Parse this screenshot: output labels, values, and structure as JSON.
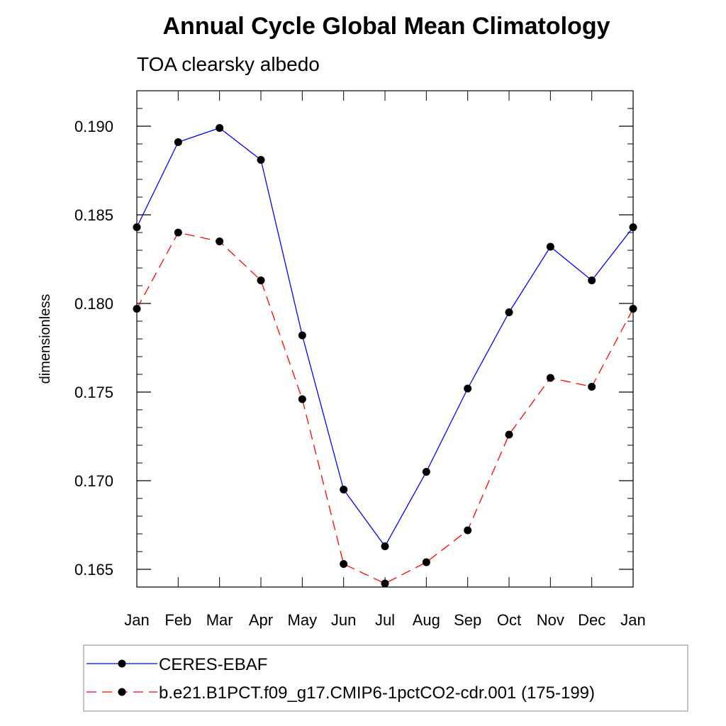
{
  "chart_data": {
    "type": "line",
    "title": "Annual Cycle Global Mean Climatology",
    "subtitle": "TOA clearsky albedo",
    "xlabel": "",
    "ylabel": "dimensionless",
    "categories": [
      "Jan",
      "Feb",
      "Mar",
      "Apr",
      "May",
      "Jun",
      "Jul",
      "Aug",
      "Sep",
      "Oct",
      "Nov",
      "Dec",
      "Jan"
    ],
    "ylim": [
      0.164,
      0.192
    ],
    "yticks": [
      0.165,
      0.17,
      0.175,
      0.18,
      0.185,
      0.19
    ],
    "ytick_labels": [
      "0.165",
      "0.170",
      "0.175",
      "0.180",
      "0.185",
      "0.190"
    ],
    "series": [
      {
        "name": "CERES-EBAF",
        "color": "#0000ff",
        "dash": "solid",
        "values": [
          0.1843,
          0.1891,
          0.1899,
          0.1881,
          0.1782,
          0.1695,
          0.1663,
          0.1705,
          0.1752,
          0.1795,
          0.1832,
          0.1813,
          0.1843
        ]
      },
      {
        "name": "b.e21.B1PCT.f09_g17.CMIP6-1pctCO2-cdr.001 (175-199)",
        "color": "#ff0000",
        "dash": "dashed",
        "values": [
          0.1797,
          0.184,
          0.1835,
          0.1813,
          0.1746,
          0.1653,
          0.1642,
          0.1654,
          0.1672,
          0.1726,
          0.1758,
          0.1753,
          0.1797
        ]
      }
    ],
    "marker_color": "#000000",
    "legend_position": "bottom"
  }
}
